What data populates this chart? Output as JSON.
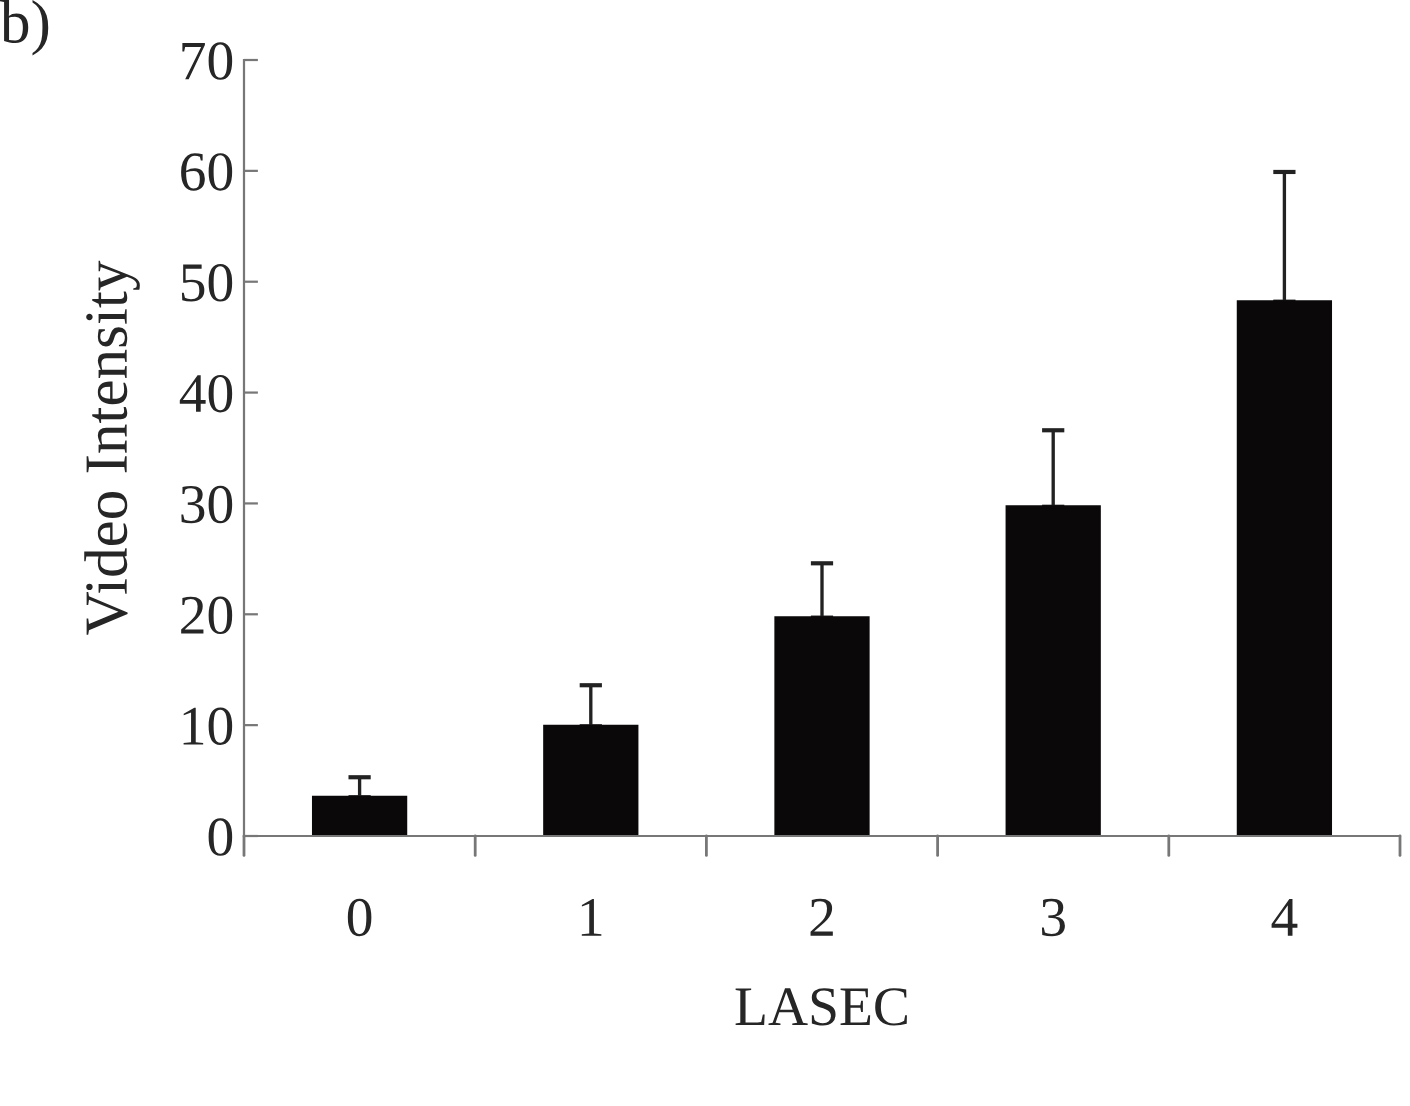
{
  "chart_data": {
    "type": "bar",
    "xlabel": "LASEC",
    "ylabel": "Video Intensity",
    "annotations": [
      "b)"
    ],
    "categories": [
      "0",
      "1",
      "2",
      "3",
      "4"
    ],
    "values": [
      3.5,
      9.9,
      19.7,
      29.7,
      48.2
    ],
    "errors": [
      [
        3.5,
        5.3
      ],
      [
        9.9,
        13.6
      ],
      [
        19.7,
        24.6
      ],
      [
        29.7,
        36.6
      ],
      [
        48.2,
        59.9
      ]
    ],
    "color": "#0a0808",
    "ylim": [
      0,
      70
    ],
    "yticks": [
      0,
      10,
      20,
      30,
      40,
      50,
      60,
      70
    ],
    "grid": false
  }
}
